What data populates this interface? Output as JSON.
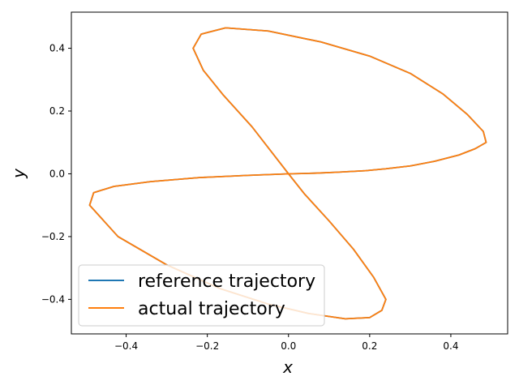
{
  "chart_data": {
    "type": "line",
    "title": "",
    "xlabel": "x",
    "ylabel": "y",
    "xlim": [
      -0.535,
      0.54
    ],
    "ylim": [
      -0.51,
      0.515
    ],
    "xticks": [
      -0.4,
      -0.2,
      0.0,
      0.2,
      0.4
    ],
    "yticks": [
      -0.4,
      -0.2,
      0.0,
      0.2,
      0.4
    ],
    "xtick_labels": [
      "−0.4",
      "−0.2",
      "0.0",
      "0.2",
      "0.4"
    ],
    "ytick_labels": [
      "−0.4",
      "−0.2",
      "0.0",
      "0.2",
      "0.4"
    ],
    "grid": false,
    "legend_position": "lower-left",
    "series": [
      {
        "name": "reference trajectory",
        "color": "#1f77b4",
        "x": [
          0.0,
          0.065,
          0.12,
          0.19,
          0.24,
          0.3,
          0.36,
          0.42,
          0.46,
          0.487,
          0.48,
          0.44,
          0.38,
          0.3,
          0.2,
          0.08,
          -0.05,
          -0.155,
          -0.215,
          -0.235,
          -0.21,
          -0.16,
          -0.09,
          -0.03,
          0.0,
          0.04,
          0.1,
          0.16,
          0.21,
          0.24,
          0.23,
          0.2,
          0.14,
          0.05,
          -0.05,
          -0.17,
          -0.3,
          -0.42,
          -0.49,
          -0.48,
          -0.43,
          -0.34,
          -0.22,
          -0.1,
          -0.02,
          0.0
        ],
        "y": [
          0.0,
          0.002,
          0.005,
          0.01,
          0.016,
          0.025,
          0.04,
          0.06,
          0.08,
          0.1,
          0.135,
          0.19,
          0.255,
          0.32,
          0.375,
          0.42,
          0.455,
          0.465,
          0.445,
          0.4,
          0.33,
          0.25,
          0.15,
          0.05,
          0.0,
          -0.065,
          -0.15,
          -0.24,
          -0.33,
          -0.4,
          -0.435,
          -0.458,
          -0.462,
          -0.445,
          -0.415,
          -0.365,
          -0.29,
          -0.2,
          -0.1,
          -0.06,
          -0.04,
          -0.025,
          -0.012,
          -0.005,
          -0.001,
          0.0
        ]
      },
      {
        "name": "actual trajectory",
        "color": "#ff7f0e",
        "x": [
          0.0,
          0.065,
          0.12,
          0.19,
          0.24,
          0.3,
          0.36,
          0.42,
          0.46,
          0.487,
          0.48,
          0.44,
          0.38,
          0.3,
          0.2,
          0.08,
          -0.05,
          -0.155,
          -0.215,
          -0.235,
          -0.21,
          -0.16,
          -0.09,
          -0.03,
          0.0,
          0.04,
          0.1,
          0.16,
          0.21,
          0.24,
          0.23,
          0.2,
          0.14,
          0.05,
          -0.05,
          -0.17,
          -0.3,
          -0.42,
          -0.49,
          -0.48,
          -0.43,
          -0.34,
          -0.22,
          -0.1,
          -0.02,
          0.0
        ],
        "y": [
          0.0,
          0.002,
          0.005,
          0.01,
          0.016,
          0.025,
          0.04,
          0.06,
          0.08,
          0.1,
          0.135,
          0.19,
          0.255,
          0.32,
          0.375,
          0.42,
          0.455,
          0.465,
          0.445,
          0.4,
          0.33,
          0.25,
          0.15,
          0.05,
          0.0,
          -0.065,
          -0.15,
          -0.24,
          -0.33,
          -0.4,
          -0.435,
          -0.458,
          -0.462,
          -0.445,
          -0.415,
          -0.365,
          -0.29,
          -0.2,
          -0.1,
          -0.06,
          -0.04,
          -0.025,
          -0.012,
          -0.005,
          -0.001,
          0.0
        ]
      }
    ]
  }
}
